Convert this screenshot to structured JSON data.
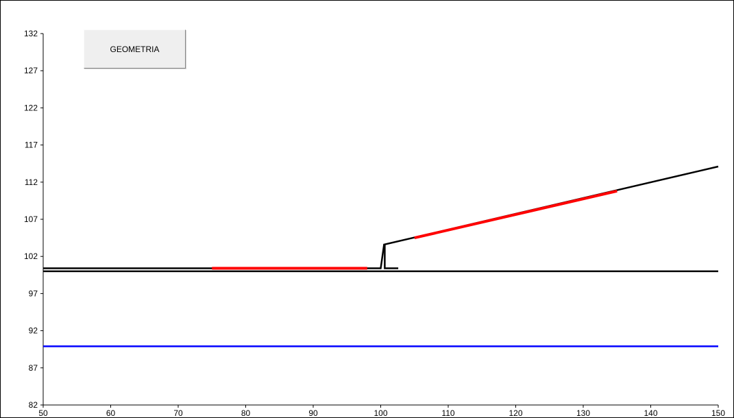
{
  "button": {
    "label": "GEOMETRIA"
  },
  "chart_data": {
    "type": "line",
    "xlim": [
      50,
      150
    ],
    "ylim": [
      82,
      132
    ],
    "x_ticks": [
      50,
      60,
      70,
      80,
      90,
      100,
      110,
      120,
      130,
      140,
      150
    ],
    "y_ticks": [
      82,
      87,
      92,
      97,
      102,
      107,
      112,
      117,
      122,
      127,
      132
    ],
    "grid": false,
    "legend": "none",
    "series": [
      {
        "color": "#000000",
        "width": 2.5,
        "points": [
          [
            50,
            100.4
          ],
          [
            100,
            100.4
          ],
          [
            100.5,
            103.6
          ],
          [
            150,
            114.1
          ]
        ]
      },
      {
        "color": "#000000",
        "width": 2.5,
        "points": [
          [
            100.6,
            103.6
          ],
          [
            100.6,
            100.4
          ],
          [
            102.6,
            100.4
          ]
        ]
      },
      {
        "color": "#000000",
        "width": 2.5,
        "points": [
          [
            50,
            100.0
          ],
          [
            150,
            100.0
          ]
        ]
      },
      {
        "color": "#ff0000",
        "width": 4,
        "points": [
          [
            75,
            100.4
          ],
          [
            98,
            100.4
          ]
        ]
      },
      {
        "color": "#ff0000",
        "width": 4,
        "points": [
          [
            105,
            104.5
          ],
          [
            135,
            110.8
          ]
        ]
      },
      {
        "color": "#0000ff",
        "width": 2.5,
        "points": [
          [
            50,
            89.9
          ],
          [
            150,
            89.9
          ]
        ]
      }
    ]
  }
}
